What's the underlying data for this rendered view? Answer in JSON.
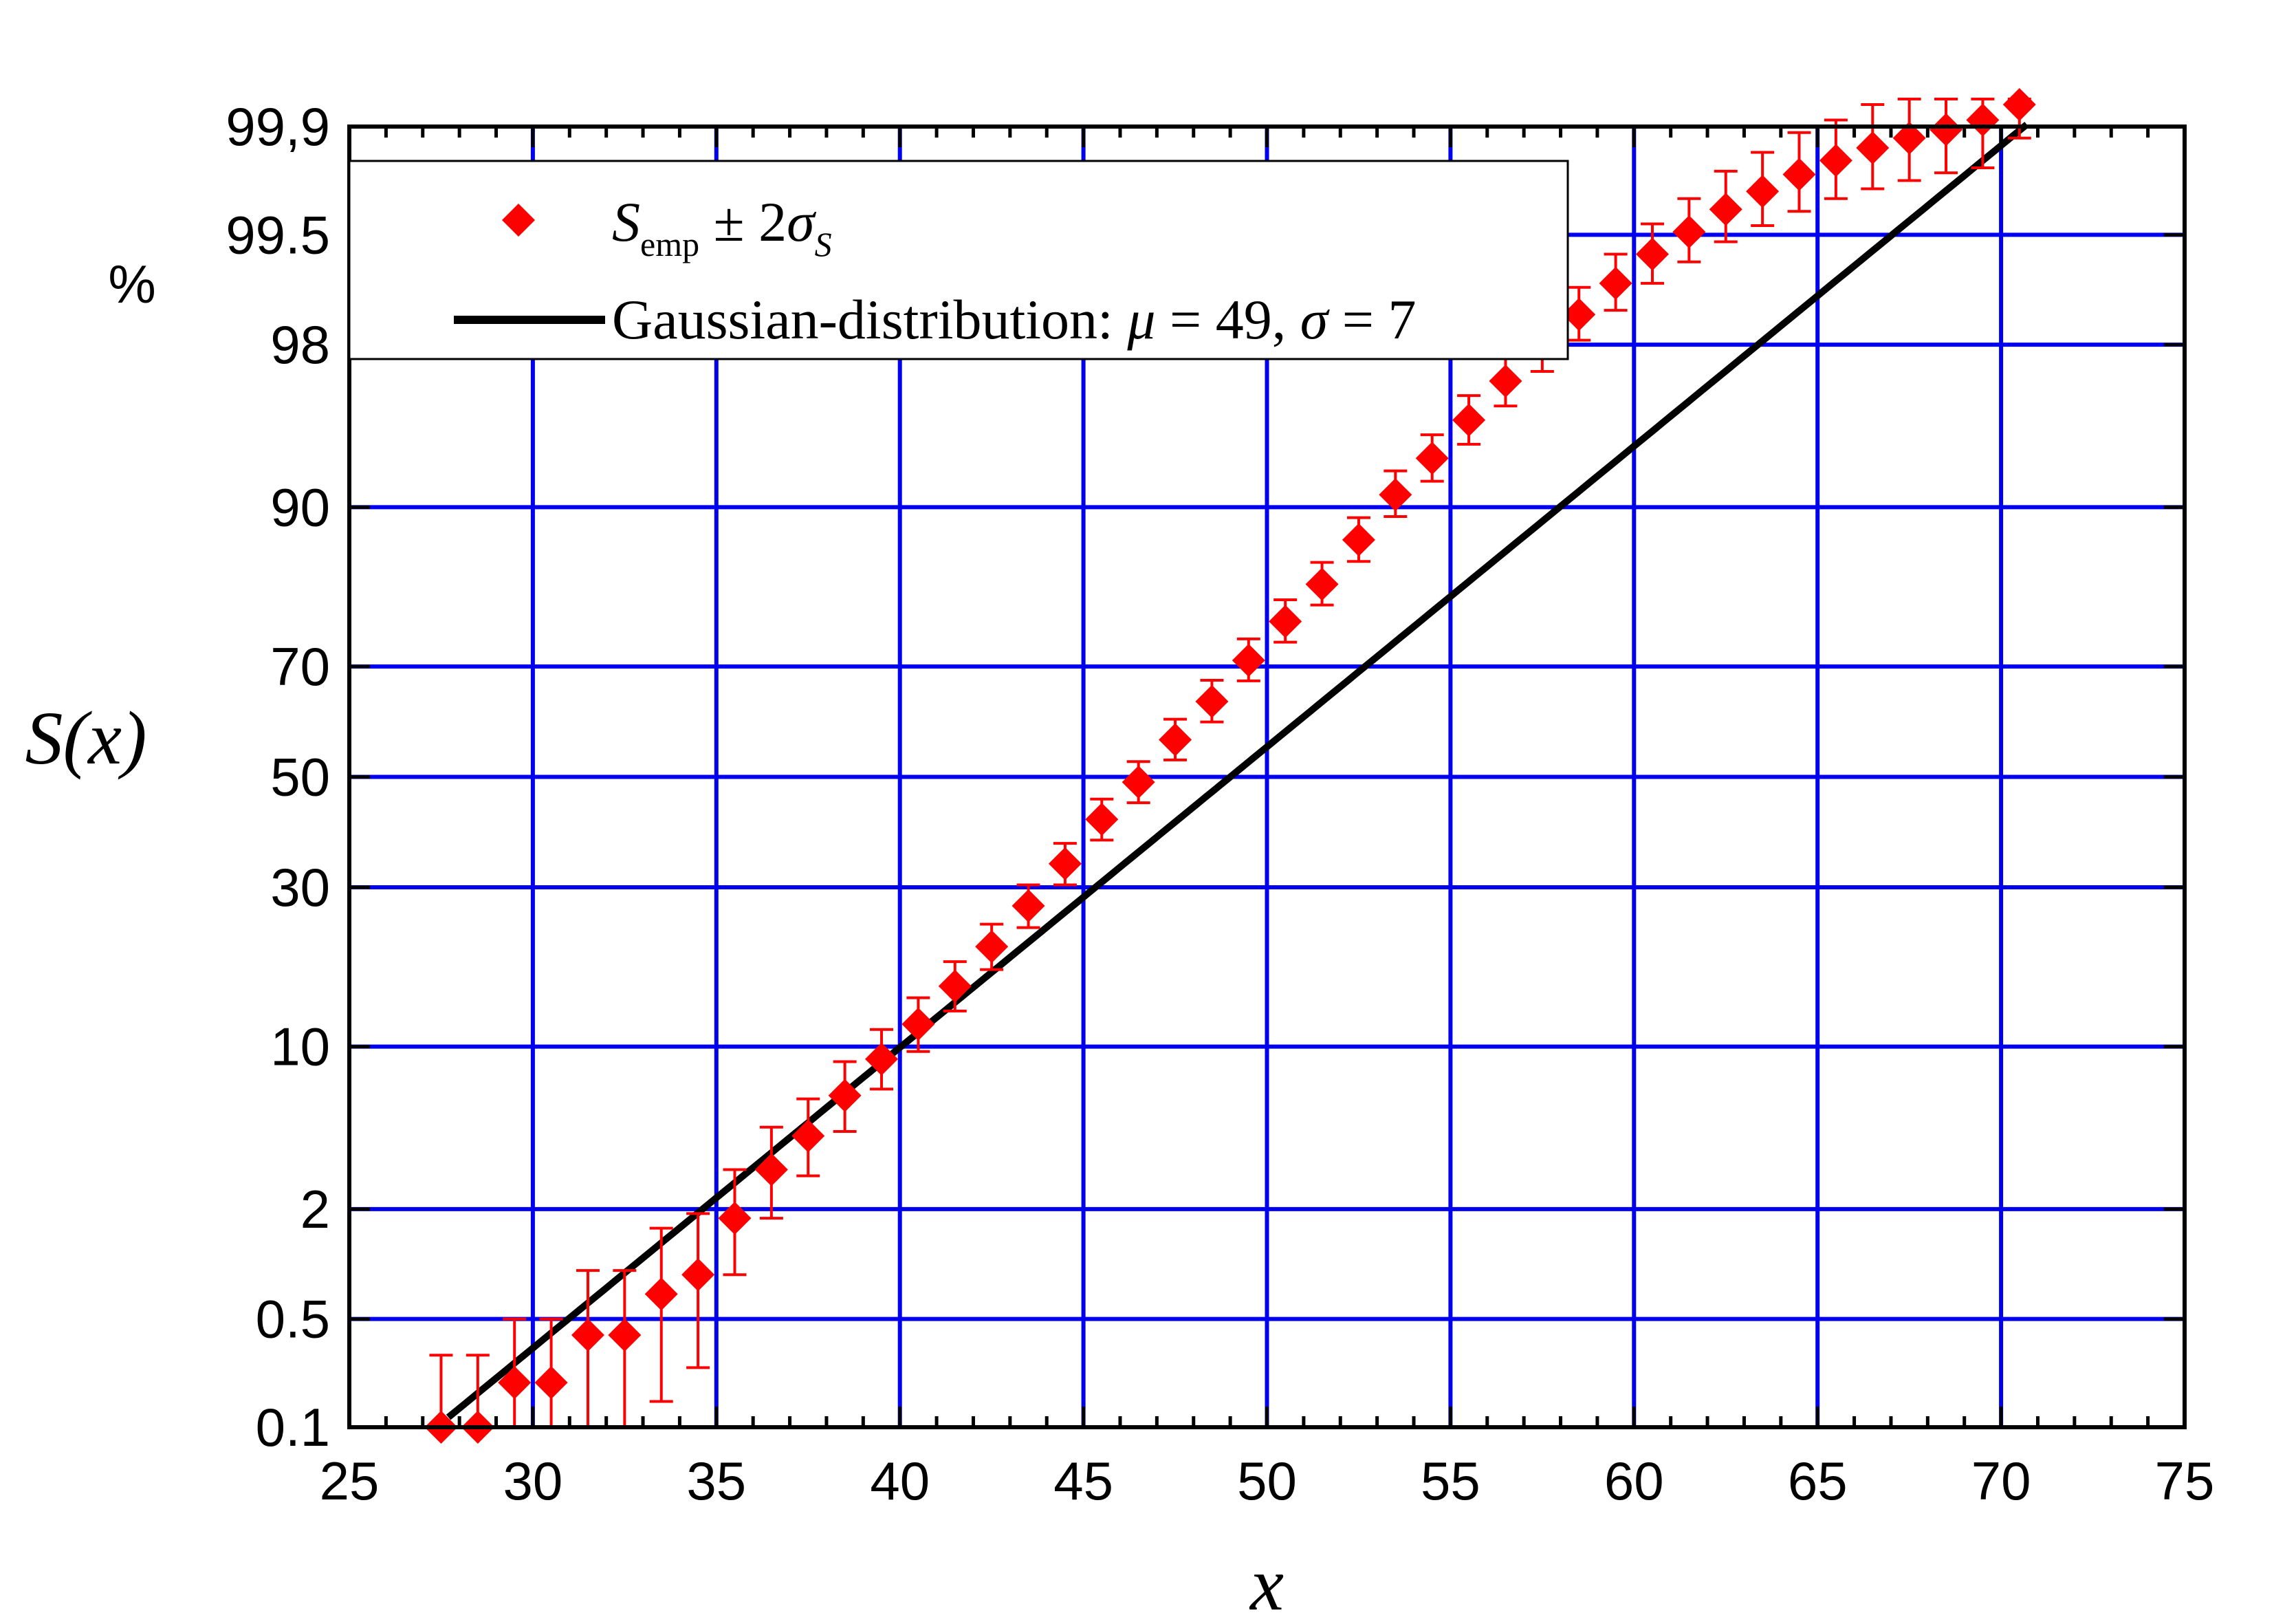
{
  "chart_data": {
    "type": "scatter",
    "x_axis": {
      "label": "x",
      "range": [
        25,
        75
      ],
      "ticks": [
        25,
        30,
        35,
        40,
        45,
        50,
        55,
        60,
        65,
        70,
        75
      ],
      "tick_labels": [
        "25",
        "30",
        "35",
        "40",
        "45",
        "50",
        "55",
        "60",
        "65",
        "70",
        "75"
      ]
    },
    "y_axis": {
      "label": "S(x)",
      "unit": "%",
      "scale": "normal-probability",
      "range": [
        0.1,
        99.9
      ],
      "ticks": [
        0.1,
        0.5,
        2,
        10,
        30,
        50,
        70,
        90,
        98,
        99.5,
        99.9
      ],
      "tick_labels": [
        "0.1",
        "0.5",
        "2",
        "10",
        "30",
        "50",
        "70",
        "90",
        "98",
        "99.5",
        "99,9"
      ]
    },
    "grid": true,
    "grid_color": "#0000ee",
    "legend_position": "top-left",
    "legend": {
      "empirical": {
        "main": "S",
        "sub": "emp",
        "middle": " ± 2",
        "sigma": "σ",
        "sigma_sub": "S"
      },
      "fit": {
        "text1": "Gaussian-distribution: ",
        "mu": "μ",
        "text2": " = 49, ",
        "sigma": "σ",
        "text3": " = 7"
      }
    },
    "series": [
      {
        "name": "S_emp ± 2σ_S",
        "kind": "points-with-error-bars",
        "color": "#ff0000",
        "marker": "diamond",
        "x": [
          27.5,
          28.5,
          29.5,
          30.5,
          31.5,
          32.5,
          33.5,
          34.5,
          35.5,
          36.5,
          37.5,
          38.5,
          39.5,
          40.5,
          41.5,
          42.5,
          43.5,
          44.5,
          45.5,
          46.5,
          47.5,
          48.5,
          49.5,
          50.5,
          51.5,
          52.5,
          53.5,
          54.5,
          55.5,
          56.5,
          57.5,
          58.5,
          59.5,
          60.5,
          61.5,
          62.5,
          63.5,
          64.5,
          65.5,
          66.5,
          67.5,
          68.5,
          69.5,
          70.5
        ],
        "y": [
          0.1,
          0.1,
          0.2,
          0.2,
          0.4,
          0.4,
          0.7,
          0.9,
          1.8,
          3.1,
          4.4,
          6.5,
          9,
          12,
          16,
          21,
          27,
          34,
          42,
          49,
          57,
          64,
          71,
          77,
          82,
          87,
          91,
          93.5,
          95.5,
          97,
          98,
          98.6,
          99.05,
          99.35,
          99.52,
          99.65,
          99.73,
          99.79,
          99.83,
          99.86,
          99.88,
          99.895,
          99.91,
          99.93
        ],
        "y_err_low": [
          0.05,
          0.05,
          0.15,
          0.15,
          0.3,
          0.3,
          0.55,
          0.65,
          0.9,
          1.3,
          1.5,
          1.9,
          2.1,
          2.4,
          2.7,
          3.0,
          3.3,
          3.6,
          3.8,
          3.9,
          3.8,
          3.7,
          3.4,
          3.1,
          2.7,
          2.3,
          1.8,
          1.5,
          1.2,
          0.9,
          0.7,
          0.5,
          0.38,
          0.3,
          0.24,
          0.2,
          0.17,
          0.15,
          0.13,
          0.12,
          0.11,
          0.1,
          0.1,
          0.05
        ],
        "y_err_high": [
          0.2,
          0.2,
          0.3,
          0.3,
          0.55,
          0.55,
          0.9,
          1.0,
          1.3,
          1.7,
          1.9,
          2.3,
          2.5,
          2.7,
          3.0,
          3.2,
          3.4,
          3.6,
          3.8,
          3.9,
          3.8,
          3.7,
          3.4,
          3.0,
          2.6,
          2.1,
          1.7,
          1.3,
          1.0,
          0.75,
          0.55,
          0.4,
          0.3,
          0.22,
          0.18,
          0.15,
          0.12,
          0.1,
          0.08,
          0.07,
          0.06,
          0.05,
          0.04,
          0.02
        ]
      },
      {
        "name": "Gaussian-distribution: μ = 49, σ = 7",
        "kind": "line",
        "color": "#000000",
        "mu": 49,
        "sigma": 7,
        "x_range": [
          27.7,
          70.7
        ]
      }
    ]
  }
}
